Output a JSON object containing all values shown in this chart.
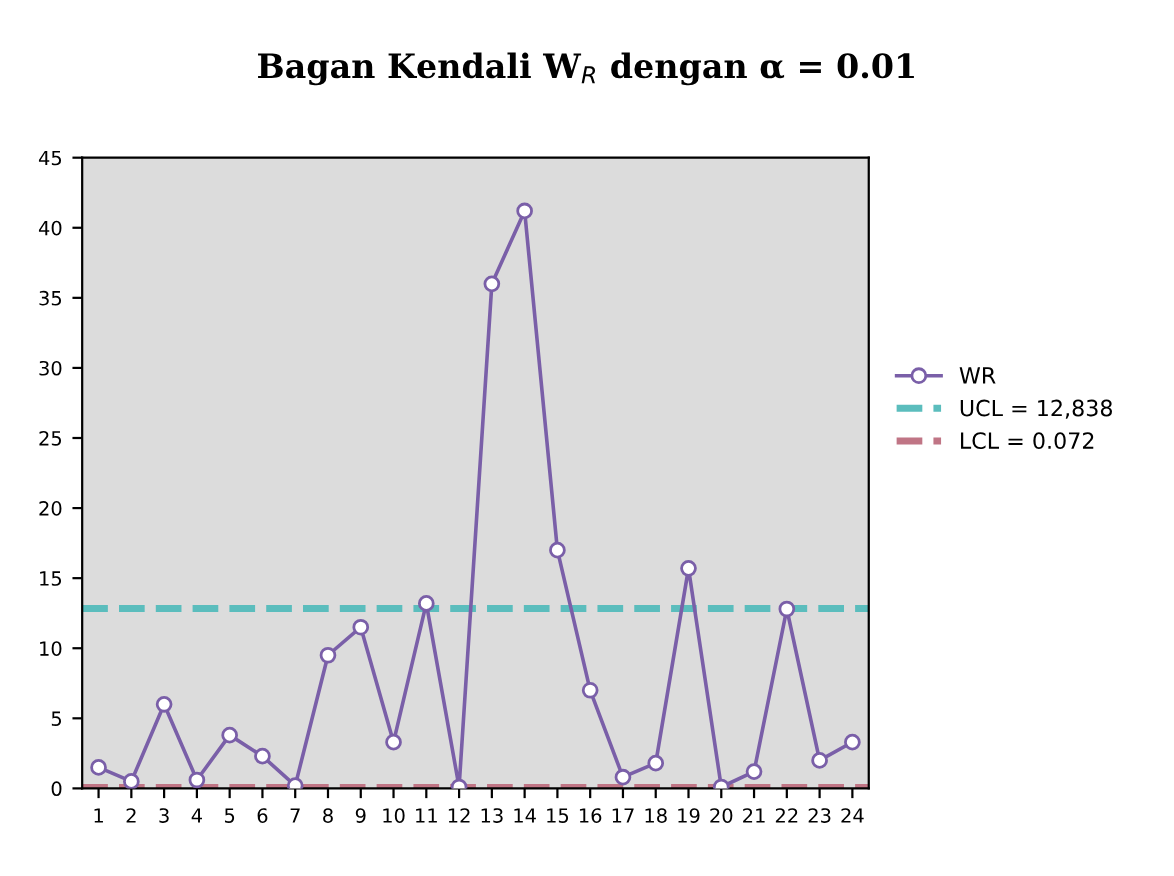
{
  "chart_data": {
    "type": "line",
    "title": "Bagan Kendali W$_{R}$ dengan α = 0.01",
    "categories": [
      "1",
      "2",
      "3",
      "4",
      "5",
      "6",
      "7",
      "8",
      "9",
      "10",
      "11",
      "12",
      "13",
      "14",
      "15",
      "16",
      "17",
      "18",
      "19",
      "20",
      "21",
      "22",
      "23",
      "24"
    ],
    "series": [
      {
        "name": "WR",
        "color": "#7a5fa8",
        "values": [
          1.5,
          0.5,
          6,
          0.6,
          3.8,
          2.3,
          0.2,
          9.5,
          11.5,
          3.3,
          13.2,
          0.1,
          36,
          41.2,
          17,
          7,
          0.8,
          1.8,
          15.7,
          0.1,
          1.2,
          12.8,
          2,
          3.3
        ]
      }
    ],
    "ref_lines": [
      {
        "axis": "y",
        "value": 12.838,
        "label": "UCL = 12,838",
        "color": "#5bbdbd",
        "line_style": "dashed"
      },
      {
        "axis": "y",
        "value": 0.072,
        "label": "LCL = 0.072",
        "color": "#c07585",
        "line_style": "dashed"
      }
    ],
    "ylim": [
      0,
      45
    ],
    "yticks": [
      0,
      5,
      10,
      15,
      20,
      25,
      30,
      35,
      40,
      45
    ],
    "marker": "circle",
    "line_style": "solid",
    "grid": false,
    "legend": "right"
  }
}
